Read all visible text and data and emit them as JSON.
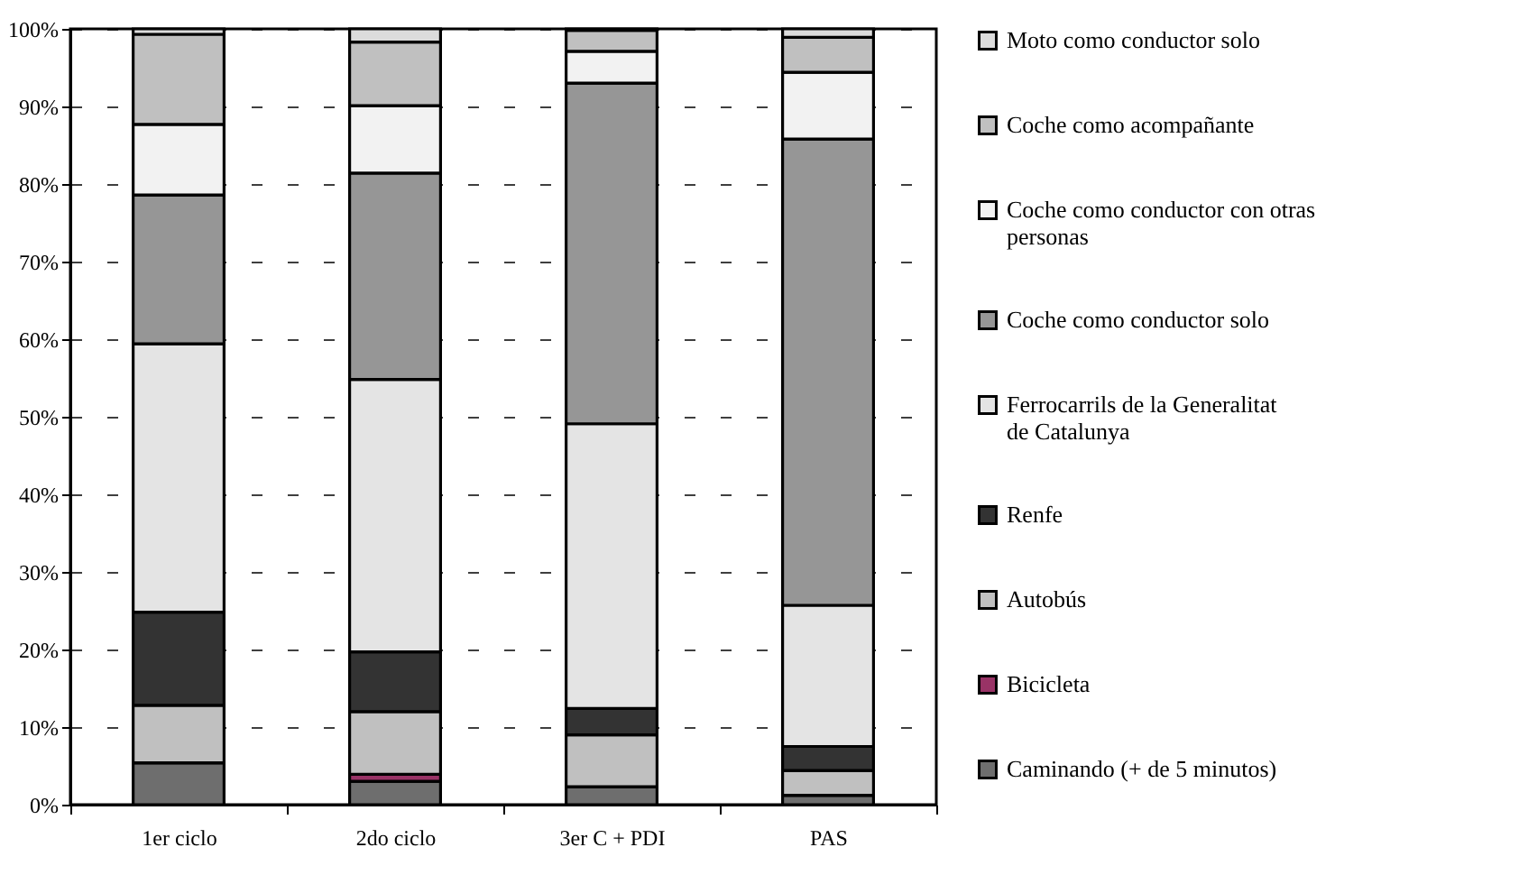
{
  "chart_data": {
    "type": "bar",
    "stacked": true,
    "categories": [
      "1er ciclo",
      "2do ciclo",
      "3er C + PDI",
      "PAS"
    ],
    "series": [
      {
        "name": "Caminando (+ de 5 minutos)",
        "color": "#6e6e6e",
        "values": [
          5.4,
          3.0,
          2.3,
          1.2
        ]
      },
      {
        "name": "Bicicleta",
        "color": "#993366",
        "values": [
          0,
          0.9,
          0,
          0
        ]
      },
      {
        "name": "Autobús",
        "color": "#c0c0c0",
        "values": [
          7.4,
          8.1,
          6.7,
          3.2
        ]
      },
      {
        "name": "Renfe",
        "color": "#333333",
        "values": [
          12.0,
          7.7,
          3.4,
          3.1
        ]
      },
      {
        "name": "Ferrocarrils de la Generalitat de Catalunya",
        "color": "#e4e4e4",
        "values": [
          34.6,
          35.1,
          36.7,
          18.2
        ]
      },
      {
        "name": "Coche como conductor solo",
        "color": "#969696",
        "values": [
          19.2,
          26.6,
          43.9,
          60.1
        ]
      },
      {
        "name": "Coche como conductor con otras personas",
        "color": "#f2f2f2",
        "values": [
          9.1,
          8.7,
          4.1,
          8.6
        ]
      },
      {
        "name": "Coche como acompañante",
        "color": "#c0c0c0",
        "values": [
          11.6,
          8.2,
          2.7,
          4.5
        ]
      },
      {
        "name": "Moto como conductor solo",
        "color": "#dcdcdc",
        "values": [
          0.7,
          1.7,
          0.2,
          1.1
        ]
      }
    ],
    "ylim": [
      0,
      100
    ],
    "yticks": [
      {
        "value": 0,
        "label": "0%"
      },
      {
        "value": 10,
        "label": "10%"
      },
      {
        "value": 20,
        "label": "20%"
      },
      {
        "value": 30,
        "label": "30%"
      },
      {
        "value": 40,
        "label": "40%"
      },
      {
        "value": 50,
        "label": "50%"
      },
      {
        "value": 60,
        "label": "60%"
      },
      {
        "value": 70,
        "label": "70%"
      },
      {
        "value": 80,
        "label": "80%"
      },
      {
        "value": 90,
        "label": "90%"
      },
      {
        "value": 100,
        "label": "100%"
      }
    ],
    "grid": "y",
    "legend": "right"
  }
}
